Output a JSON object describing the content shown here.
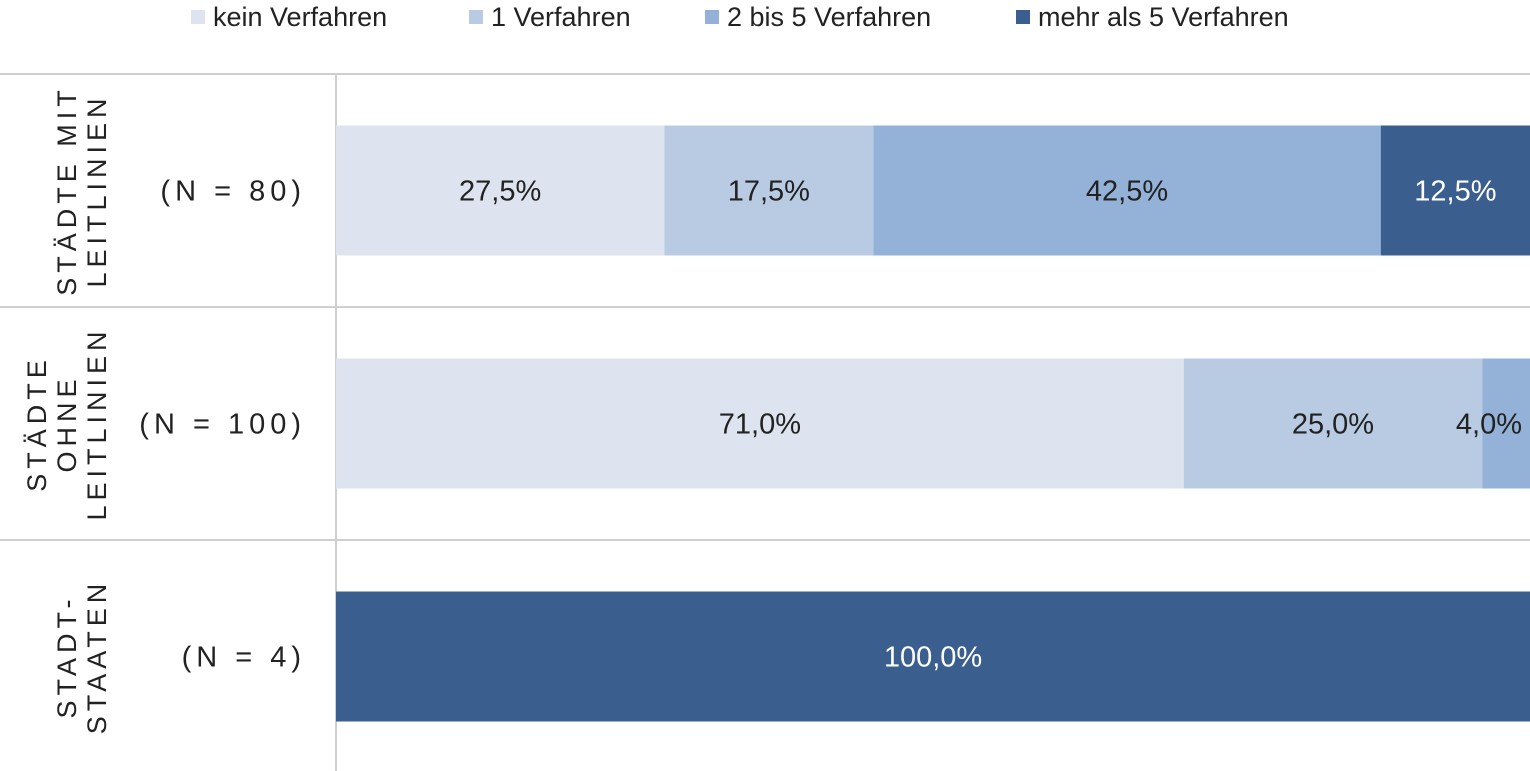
{
  "chart_data": {
    "type": "bar",
    "orientation": "horizontal",
    "stacked": true,
    "xlim": [
      0,
      100
    ],
    "unit": "%",
    "grid": false,
    "legend_position": "top",
    "categories": [
      {
        "label_lines": [
          "STÄDTE MIT",
          "LEITLINIEN"
        ],
        "n_label": "(N = 80)"
      },
      {
        "label_lines": [
          "STÄDTE",
          "OHNE",
          "LEITLINIEN"
        ],
        "n_label": "(N = 100)"
      },
      {
        "label_lines": [
          "STADT-",
          "STAATEN"
        ],
        "n_label": "(N = 4)"
      }
    ],
    "series": [
      {
        "name": "kein Verfahren",
        "color": "#dde4ef",
        "label_color": "#222222",
        "values": [
          27.5,
          71.0,
          0
        ],
        "labels": [
          "27,5%",
          "71,0%",
          ""
        ]
      },
      {
        "name": "1 Verfahren",
        "color": "#b8cbe3",
        "label_color": "#222222",
        "values": [
          17.5,
          25.0,
          0
        ],
        "labels": [
          "17,5%",
          "25,0%",
          ""
        ]
      },
      {
        "name": "2 bis 5 Verfahren",
        "color": "#94b2d8",
        "label_color": "#222222",
        "values": [
          42.5,
          4.0,
          0
        ],
        "labels": [
          "42,5%",
          "4,0%",
          ""
        ]
      },
      {
        "name": "mehr als 5 Verfahren",
        "color": "#3a5f8f",
        "label_color": "#ffffff",
        "values": [
          12.5,
          0,
          100.0
        ],
        "labels": [
          "12,5%",
          "",
          "100,0%"
        ]
      }
    ]
  }
}
